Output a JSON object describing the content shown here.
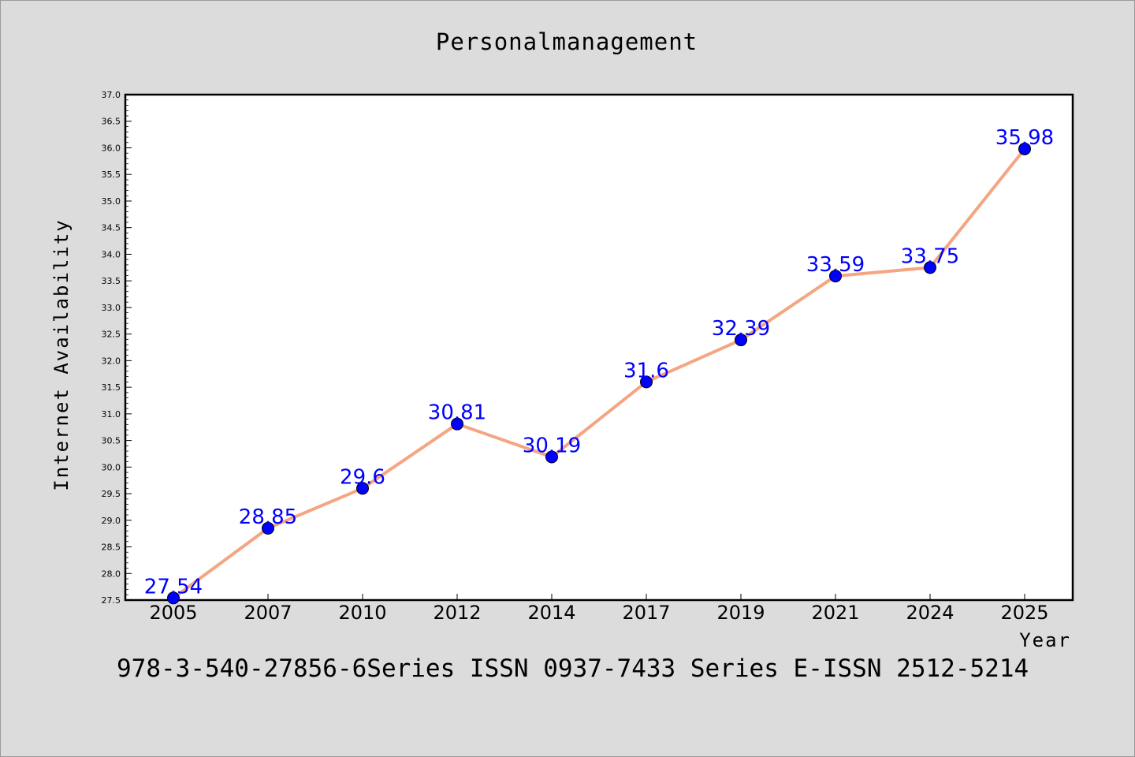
{
  "chart_data": {
    "type": "line",
    "title": "Personalmanagement",
    "xlabel": "Year",
    "ylabel": "Internet Availability",
    "categories": [
      "2005",
      "2007",
      "2010",
      "2012",
      "2014",
      "2017",
      "2019",
      "2021",
      "2024",
      "2025"
    ],
    "series": [
      {
        "values": [
          27.54,
          28.85,
          29.6,
          30.81,
          30.19,
          31.6,
          32.39,
          33.59,
          33.75,
          35.98
        ],
        "data_labels": [
          "27.54",
          "28.85",
          "29.6",
          "30.81",
          "30.19",
          "31.6",
          "32.39",
          "33.59",
          "33.75",
          "35.98"
        ],
        "line_color": "#f4a582",
        "marker_color": "#0000ff"
      }
    ],
    "ylim": [
      27.5,
      37.0
    ],
    "yticks": [
      "27.5",
      "28.0",
      "28.5",
      "29.0",
      "29.5",
      "30.0",
      "30.5",
      "31.0",
      "31.5",
      "32.0",
      "32.5",
      "33.0",
      "33.5",
      "34.0",
      "34.5",
      "35.0",
      "35.5",
      "36.0",
      "36.5",
      "37.0"
    ],
    "grid": false,
    "legend": "none"
  },
  "footer_text": "978-3-540-27856-6Series ISSN 0937-7433 Series E-ISSN 2512-5214",
  "colors": {
    "background": "#dcdcdc",
    "plot_background": "#ffffff",
    "line": "#f4a582",
    "marker": "#0000ff",
    "data_label": "#0000ff"
  }
}
